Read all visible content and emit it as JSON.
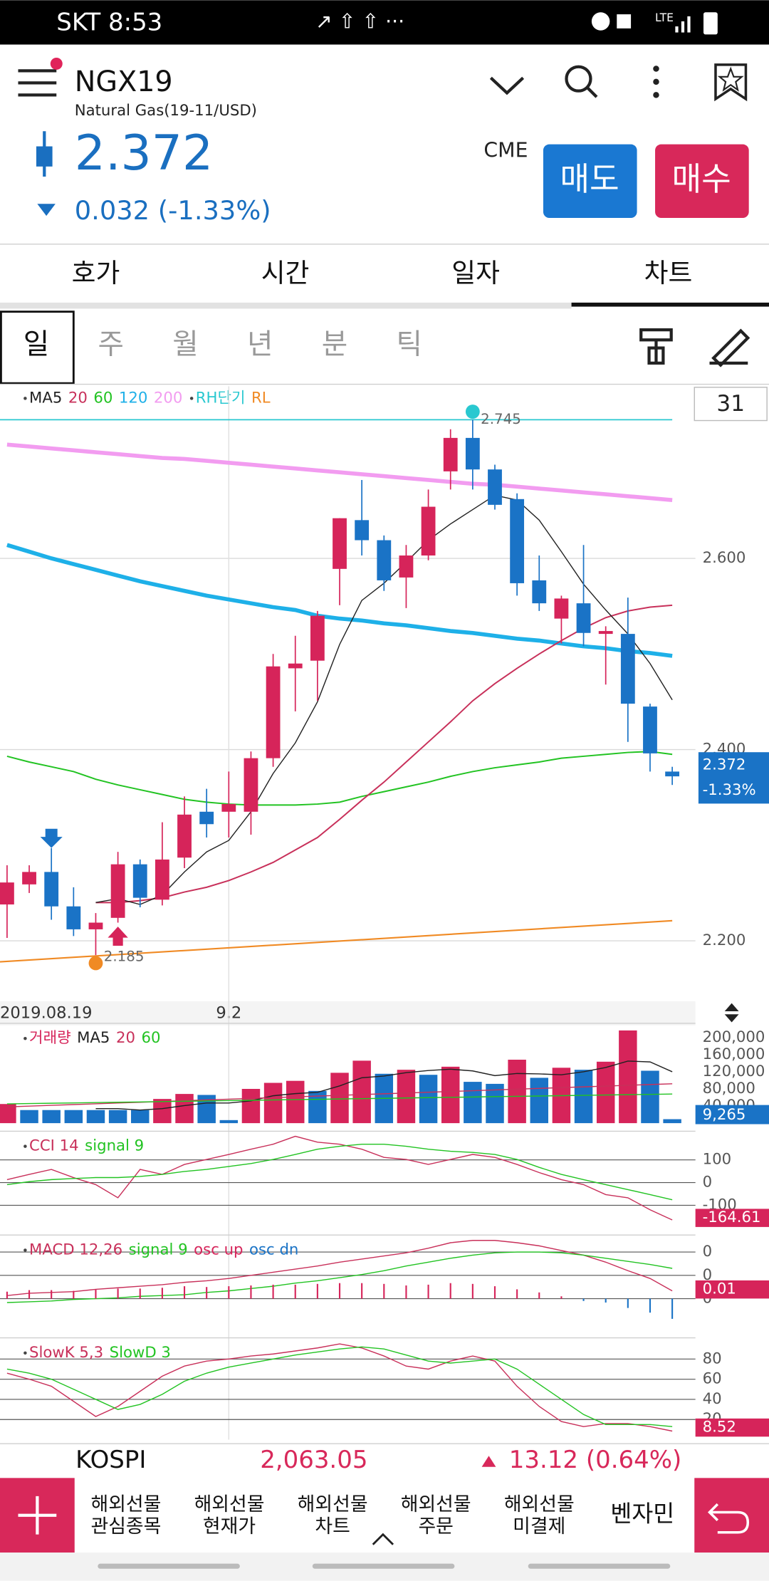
{
  "status_bar": {
    "time": "SKT 8:53",
    "network": "LTE"
  },
  "header": {
    "symbol": "NGX19",
    "name": "Natural Gas(19-11/USD)",
    "price": "2.372",
    "change": "0.032 (-1.33%)",
    "exchange": "CME",
    "sell": "매도",
    "buy": "매수"
  },
  "tabs": [
    "호가",
    "시간",
    "일자",
    "차트"
  ],
  "periods": [
    "일",
    "주",
    "월",
    "년",
    "분",
    "틱"
  ],
  "chart_data": [
    {
      "type": "candlestick",
      "period_count": 31,
      "last_change": "-1.33%",
      "categories": [
        "2019.08.19",
        null,
        null,
        null,
        null,
        null,
        null,
        null,
        null,
        null,
        "9.2",
        null,
        null,
        null,
        null,
        null,
        null,
        null,
        null,
        null,
        null,
        null,
        null,
        null,
        null,
        null,
        null,
        null,
        null,
        null,
        null
      ],
      "up_color": "#d6245a",
      "down_color": "#1a73c6",
      "open": [
        2.238,
        2.259,
        2.272,
        2.236,
        2.212,
        2.224,
        2.28,
        2.243,
        2.287,
        2.335,
        2.335,
        2.335,
        2.391,
        2.485,
        2.493,
        2.589,
        2.64,
        2.619,
        2.58,
        2.603,
        2.691,
        2.726,
        2.693,
        2.662,
        2.577,
        2.537,
        2.553,
        2.521,
        2.521,
        2.445,
        2.377
      ],
      "high": [
        2.279,
        2.279,
        2.297,
        2.256,
        2.229,
        2.293,
        2.285,
        2.324,
        2.351,
        2.359,
        2.377,
        2.398,
        2.5,
        2.519,
        2.545,
        2.642,
        2.682,
        2.624,
        2.614,
        2.672,
        2.735,
        2.745,
        2.698,
        2.668,
        2.603,
        2.561,
        2.614,
        2.529,
        2.559,
        2.448,
        2.382
      ],
      "low": [
        2.203,
        2.25,
        2.222,
        2.205,
        2.185,
        2.219,
        2.235,
        2.237,
        2.276,
        2.308,
        2.308,
        2.311,
        2.382,
        2.44,
        2.451,
        2.551,
        2.603,
        2.566,
        2.548,
        2.598,
        2.672,
        2.672,
        2.651,
        2.561,
        2.545,
        2.511,
        2.508,
        2.468,
        2.408,
        2.377,
        2.363
      ],
      "close": [
        2.261,
        2.272,
        2.236,
        2.212,
        2.219,
        2.28,
        2.245,
        2.285,
        2.332,
        2.322,
        2.343,
        2.391,
        2.487,
        2.49,
        2.54,
        2.642,
        2.619,
        2.577,
        2.603,
        2.654,
        2.726,
        2.693,
        2.656,
        2.574,
        2.553,
        2.558,
        2.522,
        2.524,
        2.448,
        2.396,
        2.372
      ],
      "series": [
        {
          "name": "MA5",
          "color": "#222222",
          "values": [
            null,
            null,
            null,
            null,
            2.24,
            2.244,
            2.238,
            2.248,
            2.272,
            2.293,
            2.305,
            2.335,
            2.375,
            2.407,
            2.45,
            2.51,
            2.556,
            2.574,
            2.596,
            2.619,
            2.636,
            2.651,
            2.666,
            2.661,
            2.64,
            2.607,
            2.573,
            2.546,
            2.521,
            2.49,
            2.452
          ]
        },
        {
          "name": "20",
          "color": "#c8305a",
          "values": [
            null,
            null,
            null,
            null,
            2.24,
            2.24,
            2.242,
            2.245,
            2.251,
            2.256,
            2.263,
            2.272,
            2.282,
            2.295,
            2.308,
            2.327,
            2.347,
            2.366,
            2.387,
            2.408,
            2.429,
            2.451,
            2.469,
            2.485,
            2.5,
            2.514,
            2.527,
            2.538,
            2.545,
            2.549,
            2.551
          ]
        },
        {
          "name": "60",
          "color": "#22c322",
          "values": [
            2.393,
            2.387,
            2.382,
            2.377,
            2.369,
            2.363,
            2.358,
            2.353,
            2.348,
            2.345,
            2.343,
            2.342,
            2.342,
            2.342,
            2.343,
            2.345,
            2.351,
            2.356,
            2.361,
            2.366,
            2.372,
            2.377,
            2.381,
            2.384,
            2.387,
            2.391,
            2.393,
            2.395,
            2.397,
            2.398,
            2.395
          ]
        },
        {
          "name": "120",
          "color": "#1eb0e8",
          "values": [
            2.614,
            2.607,
            2.6,
            2.594,
            2.588,
            2.582,
            2.576,
            2.571,
            2.566,
            2.561,
            2.557,
            2.553,
            2.549,
            2.546,
            2.54,
            2.537,
            2.535,
            2.532,
            2.53,
            2.527,
            2.524,
            2.522,
            2.519,
            2.516,
            2.514,
            2.511,
            2.508,
            2.506,
            2.503,
            2.501,
            2.498
          ]
        },
        {
          "name": "200",
          "color": "#f29cf0",
          "values": [
            2.719,
            2.717,
            2.715,
            2.713,
            2.711,
            2.709,
            2.707,
            2.705,
            2.704,
            2.702,
            2.7,
            2.698,
            2.696,
            2.694,
            2.692,
            2.69,
            2.688,
            2.686,
            2.684,
            2.682,
            2.68,
            2.678,
            2.677,
            2.675,
            2.673,
            2.671,
            2.669,
            2.667,
            2.665,
            2.663,
            2.661
          ]
        }
      ],
      "rh": {
        "name": "RH단기",
        "color": "#29c8d0",
        "value": 2.745
      },
      "rl": {
        "name": "RL",
        "color": "#f08a24",
        "values": [
          2.178,
          2.221
        ]
      },
      "ylim": [
        2.14,
        2.78
      ],
      "yticks": [
        {
          "value": 2.6,
          "label": "2.600"
        },
        {
          "value": 2.4,
          "label": "2.400"
        },
        {
          "value": 2.2,
          "label": "2.200"
        }
      ],
      "grid": true
    },
    {
      "type": "bar",
      "name": "거래량",
      "values": [
        44700,
        30600,
        30600,
        30600,
        30600,
        30600,
        30600,
        56500,
        68200,
        65900,
        7100,
        80000,
        94100,
        98800,
        75300,
        117600,
        145900,
        115300,
        124700,
        112900,
        131800,
        96500,
        91800,
        148200,
        105900,
        129400,
        124700,
        143500,
        216500,
        122400,
        9265
      ],
      "value_labels": [
        null,
        null,
        null,
        null,
        null,
        null,
        null,
        null,
        null,
        null,
        null,
        null,
        null,
        null,
        null,
        null,
        null,
        null,
        null,
        null,
        null,
        null,
        null,
        null,
        null,
        null,
        null,
        null,
        null,
        null,
        "9,265"
      ],
      "colors": [
        "#d6245a",
        "#1a73c6",
        "#1a73c6",
        "#1a73c6",
        "#1a73c6",
        "#1a73c6",
        "#1a73c6",
        "#d6245a",
        "#d6245a",
        "#1a73c6",
        "#1a73c6",
        "#d6245a",
        "#d6245a",
        "#d6245a",
        "#1a73c6",
        "#d6245a",
        "#d6245a",
        "#1a73c6",
        "#d6245a",
        "#1a73c6",
        "#d6245a",
        "#1a73c6",
        "#1a73c6",
        "#d6245a",
        "#1a73c6",
        "#d6245a",
        "#1a73c6",
        "#d6245a",
        "#d6245a",
        "#1a73c6",
        "#1a73c6"
      ],
      "series": [
        {
          "name": "MA5",
          "color": "#222222",
          "values": [
            null,
            null,
            null,
            null,
            34000,
            34000,
            30600,
            34000,
            41000,
            47000,
            47000,
            52000,
            64000,
            69000,
            72000,
            87000,
            106000,
            110000,
            118000,
            123000,
            126000,
            122000,
            111000,
            116000,
            115000,
            113000,
            120000,
            130000,
            145000,
            143000,
            120000
          ]
        },
        {
          "name": "20",
          "color": "#c8305a",
          "values": [
            38000,
            39800,
            41600,
            43400,
            45200,
            47000,
            48800,
            50600,
            52400,
            54200,
            56000,
            57800,
            59600,
            61400,
            63200,
            65000,
            66800,
            68600,
            70400,
            72200,
            74000,
            75800,
            77600,
            79400,
            81200,
            83000,
            84800,
            86600,
            88400,
            90200,
            92000
          ]
        },
        {
          "name": "60",
          "color": "#22c322",
          "values": [
            45000,
            45800,
            46500,
            47300,
            48100,
            48800,
            49600,
            50400,
            51100,
            51900,
            52700,
            53400,
            54200,
            55000,
            55700,
            56500,
            57300,
            58000,
            58800,
            59600,
            60300,
            61100,
            61900,
            62600,
            63400,
            64200,
            64900,
            65700,
            66500,
            67200,
            68000
          ]
        }
      ],
      "ylim": [
        0,
        226000
      ],
      "yticks": [
        {
          "value": 200000,
          "label": "200,000"
        },
        {
          "value": 160000,
          "label": "160,000"
        },
        {
          "value": 120000,
          "label": "120,000"
        },
        {
          "value": 80000,
          "label": "80,000"
        },
        {
          "value": 40000,
          "label": "40,000"
        }
      ],
      "grid": false
    },
    {
      "type": "line",
      "series": [
        {
          "name": "CCI 14",
          "color": "#c8305a",
          "values": [
            13,
            36,
            58,
            22,
            -9,
            -67,
            58,
            36,
            80,
            102,
            124,
            147,
            169,
            204,
            178,
            169,
            147,
            111,
            102,
            80,
            102,
            124,
            111,
            80,
            44,
            13,
            -9,
            -53,
            -67,
            -120,
            -164.61
          ]
        },
        {
          "name": "signal 9",
          "color": "#22c322",
          "values": [
            -9,
            4,
            13,
            18,
            22,
            22,
            27,
            36,
            49,
            58,
            71,
            84,
            102,
            124,
            147,
            160,
            169,
            169,
            160,
            147,
            138,
            133,
            124,
            102,
            67,
            36,
            13,
            -9,
            -31,
            -53,
            -76
          ]
        }
      ],
      "ylim": [
        -218,
        213
      ],
      "yticks": [
        100,
        0,
        -100
      ],
      "grid": true
    },
    {
      "type": "line",
      "series": [
        {
          "name": "MACD 12,26",
          "color": "#c8305a",
          "values": [
            0.004,
            0.007,
            0.008,
            0.009,
            0.012,
            0.014,
            0.016,
            0.018,
            0.021,
            0.023,
            0.026,
            0.03,
            0.034,
            0.038,
            0.042,
            0.047,
            0.051,
            0.055,
            0.059,
            0.065,
            0.072,
            0.075,
            0.075,
            0.072,
            0.068,
            0.062,
            0.056,
            0.047,
            0.036,
            0.026,
            0.01
          ]
        },
        {
          "name": "signal 9",
          "color": "#22c322",
          "values": [
            -0.005,
            -0.004,
            -0.003,
            -0.001,
            0,
            0.001,
            0.003,
            0.004,
            0.005,
            0.008,
            0.01,
            0.013,
            0.016,
            0.02,
            0.023,
            0.027,
            0.031,
            0.036,
            0.042,
            0.047,
            0.052,
            0.056,
            0.059,
            0.06,
            0.06,
            0.059,
            0.056,
            0.052,
            0.048,
            0.044,
            0.039
          ]
        },
        {
          "name": "osc up",
          "color": "#d6245a",
          "kind": "bar",
          "values": [
            0.009,
            0.011,
            0.011,
            0.01,
            0.012,
            0.013,
            0.013,
            0.014,
            0.016,
            0.015,
            0.016,
            0.017,
            0.018,
            0.018,
            0.019,
            0.02,
            0.02,
            0.019,
            0.017,
            0.018,
            0.02,
            0.019,
            0.016,
            0.012,
            0.008,
            0.003,
            null,
            null,
            null,
            null,
            null
          ]
        },
        {
          "name": "osc dn",
          "color": "#1a73c6",
          "kind": "bar",
          "values": [
            null,
            null,
            null,
            null,
            null,
            null,
            null,
            null,
            null,
            null,
            null,
            null,
            null,
            null,
            null,
            null,
            null,
            null,
            null,
            null,
            null,
            null,
            null,
            null,
            null,
            null,
            -0.003,
            -0.005,
            -0.012,
            -0.018,
            -0.026
          ]
        }
      ],
      "ylim": [
        -0.044,
        0.078
      ],
      "yticks": [
        {
          "value": 0.06,
          "label": "0"
        },
        {
          "value": 0.03,
          "label": "0"
        },
        {
          "value": 0,
          "label": "0"
        }
      ],
      "grid": true
    },
    {
      "type": "line",
      "series": [
        {
          "name": "SlowK 5,3",
          "color": "#c8305a",
          "values": [
            66,
            60,
            53,
            38,
            23,
            33,
            48,
            63,
            73,
            78,
            80,
            83,
            85,
            88,
            91,
            95,
            91,
            83,
            73,
            70,
            78,
            83,
            78,
            53,
            33,
            18,
            13,
            16,
            16,
            13,
            8.52
          ]
        },
        {
          "name": "SlowD 3",
          "color": "#22c322",
          "values": [
            70,
            66,
            60,
            50,
            40,
            30,
            35,
            45,
            58,
            66,
            72,
            76,
            80,
            84,
            87,
            90,
            92,
            90,
            84,
            78,
            76,
            78,
            80,
            70,
            55,
            40,
            25,
            15,
            15,
            15,
            13
          ]
        }
      ],
      "ylim": [
        0,
        98
      ],
      "yticks": [
        80,
        60,
        40,
        20
      ],
      "grid": true
    }
  ],
  "ticker": {
    "name": "KOSPI",
    "value": "2,063.05",
    "change": "13.12 (0.64%)"
  },
  "nav": [
    [
      "해외선물",
      "관심종목"
    ],
    [
      "해외선물",
      "현재가"
    ],
    [
      "해외선물",
      "차트"
    ],
    [
      "해외선물",
      "주문"
    ],
    [
      "해외선물",
      "미결제"
    ],
    [
      "벤자민"
    ]
  ]
}
